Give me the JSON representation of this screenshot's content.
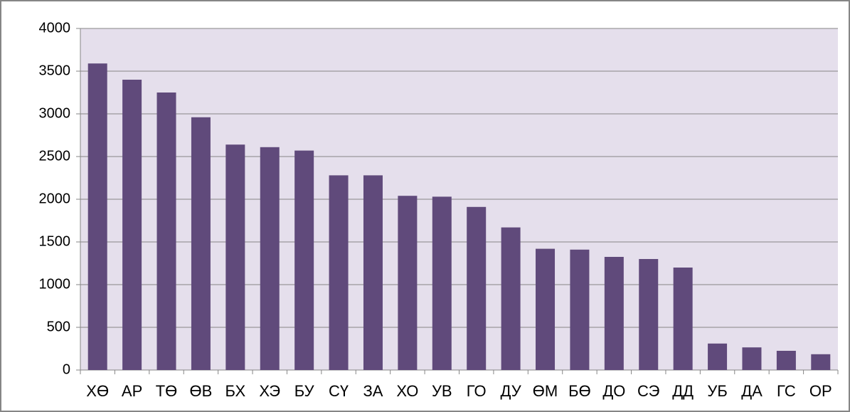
{
  "chart_data": {
    "type": "bar",
    "categories": [
      "ХӨ",
      "АР",
      "ТӨ",
      "ӨВ",
      "БХ",
      "ХЭ",
      "БУ",
      "СҮ",
      "ЗА",
      "ХО",
      "УВ",
      "ГО",
      "ДУ",
      "ӨМ",
      "БӨ",
      "ДО",
      "СЭ",
      "ДД",
      "УБ",
      "ДА",
      "ГС",
      "ОР"
    ],
    "values": [
      3590,
      3400,
      3250,
      2960,
      2640,
      2610,
      2570,
      2280,
      2280,
      2040,
      2030,
      1910,
      1670,
      1420,
      1410,
      1325,
      1300,
      1200,
      310,
      265,
      225,
      185
    ],
    "color": "#604a7b",
    "ylim": [
      0,
      4000
    ],
    "yticks": [
      0,
      500,
      1000,
      1500,
      2000,
      2500,
      3000,
      3500,
      4000
    ],
    "grid": true
  }
}
